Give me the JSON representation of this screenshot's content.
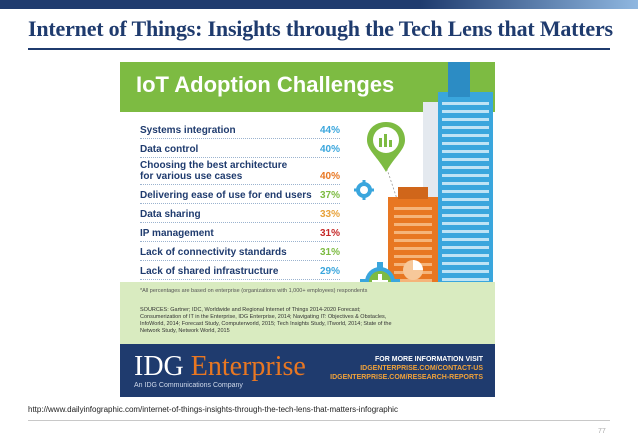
{
  "slide": {
    "title": "Internet of Things: Insights through the Tech Lens that Matters",
    "source_url": "http://www.dailyinfographic.com/internet-of-things-insights-through-the-tech-lens-that-matters-infographic",
    "page_number": "77"
  },
  "infographic": {
    "title": "IoT Adoption Challenges",
    "challenges": [
      {
        "label": "Systems integration",
        "percent": "44%",
        "color": "#3aa6dd"
      },
      {
        "label": "Data control",
        "percent": "40%",
        "color": "#3aa6dd"
      },
      {
        "label": "Choosing the best architecture\nfor various use cases",
        "percent": "40%",
        "color": "#e87722"
      },
      {
        "label": "Delivering ease of use for end users",
        "percent": "37%",
        "color": "#7dbb42"
      },
      {
        "label": "Data sharing",
        "percent": "33%",
        "color": "#e8a23a"
      },
      {
        "label": "IP management",
        "percent": "31%",
        "color": "#c62828"
      },
      {
        "label": "Lack of connectivity standards",
        "percent": "31%",
        "color": "#7dbb42"
      },
      {
        "label": "Lack of shared infrastructure",
        "percent": "29%",
        "color": "#3aa6dd"
      }
    ],
    "footnote": "*All percentages are based on enterprise (organizations with 1,000+ employees) respondents",
    "sources": "SOURCES: Gartner; IDC, Worldwide and Regional Internet of Things 2014-2020 Forecast; Consumerization of IT in the Enterprise, IDG Enterprise, 2014; Navigating IT: Objectives & Obstacles, InfoWorld, 2014; Forecast Study, Computerworld, 2015; Tech Insights Study, ITworld, 2014; State of the Network Study, Network World, 2015",
    "logo_idg": "IDG",
    "logo_enterprise": "Enterprise",
    "logo_sub": "An IDG Communications Company",
    "more_info_heading": "FOR MORE INFORMATION VISIT",
    "more_info_link1": "IDGENTERPRISE.COM/CONTACT-US",
    "more_info_link2": "IDGENTERPRISE.COM/RESEARCH-REPORTS"
  },
  "colors": {
    "brand_navy": "#1f3b6e",
    "header_green": "#7dbb42",
    "accent_orange": "#e87722",
    "accent_blue": "#3aa6dd"
  },
  "icons": [
    "bar-chart-icon",
    "gear-icon",
    "plus-icon",
    "pie-chart-icon"
  ]
}
